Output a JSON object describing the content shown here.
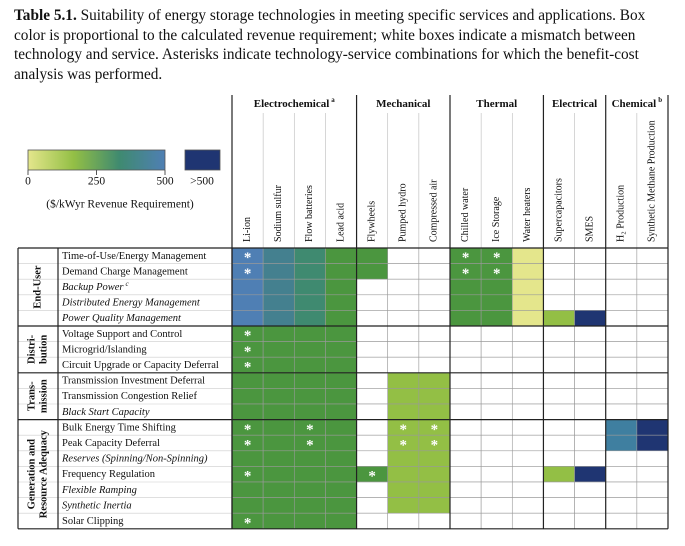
{
  "caption": {
    "label": "Table 5.1.",
    "text": "Suitability of energy storage technologies in meeting specific services and applications. Box color is proportional to the calculated revenue requirement; white boxes indicate a mismatch between technology and service. Asterisks indicate technology-service combinations for which the benefit-cost analysis was performed."
  },
  "legend": {
    "ticks": [
      0,
      250,
      500
    ],
    "over_label": ">500",
    "unit": "($/kWyr Revenue Requirement)",
    "gradient": [
      "#e4e68c",
      "#93bf45",
      "#3f8a70",
      "#4f7fb4"
    ],
    "over_color": "#1f3572"
  },
  "groups": [
    {
      "label": "Electrochemical",
      "note": "a",
      "columns": [
        "Li-ion",
        "Sodium sulfur",
        "Flow batteries",
        "Lead acid"
      ]
    },
    {
      "label": "Mechanical",
      "columns": [
        "Flywheels",
        "Pumped hydro",
        "Compressed air"
      ]
    },
    {
      "label": "Thermal",
      "columns": [
        "Chilled water",
        "Ice Storage",
        "Water heaters"
      ]
    },
    {
      "label": "Electrical",
      "columns": [
        "Supercapacitors",
        "SMES"
      ]
    },
    {
      "label": "Chemical",
      "note": "b",
      "columns": [
        "H₂ Production",
        "Synthetic Methane Production"
      ]
    }
  ],
  "sections": [
    {
      "label": [
        "End-User"
      ],
      "rows": [
        {
          "label": "Time-of-Use/Energy Management",
          "cells": [
            {
              "color": "#4f7fb4",
              "mark": "*"
            },
            {
              "color": "#44808f"
            },
            {
              "color": "#3f8a70"
            },
            {
              "color": "#4b963f"
            },
            {
              "color": "#4b963f"
            },
            null,
            null,
            {
              "color": "#4b963f",
              "mark": "*"
            },
            {
              "color": "#4b963f",
              "mark": "*"
            },
            {
              "color": "#e4e68c"
            },
            null,
            null,
            null,
            null
          ]
        },
        {
          "label": "Demand Charge Management",
          "cells": [
            {
              "color": "#4f7fb4",
              "mark": "*"
            },
            {
              "color": "#44808f"
            },
            {
              "color": "#3f8a70"
            },
            {
              "color": "#4b963f"
            },
            {
              "color": "#4b963f"
            },
            null,
            null,
            {
              "color": "#4b963f",
              "mark": "*"
            },
            {
              "color": "#4b963f",
              "mark": "*"
            },
            {
              "color": "#e4e68c"
            },
            null,
            null,
            null,
            null
          ]
        },
        {
          "label": "Backup Power",
          "note": "c",
          "italic": true,
          "cells": [
            {
              "color": "#4f7fb4"
            },
            {
              "color": "#44808f"
            },
            {
              "color": "#3f8a70"
            },
            {
              "color": "#4b963f"
            },
            null,
            null,
            null,
            {
              "color": "#4b963f"
            },
            {
              "color": "#4b963f"
            },
            {
              "color": "#e4e68c"
            },
            null,
            null,
            null,
            null
          ]
        },
        {
          "label": "Distributed Energy Management",
          "italic": true,
          "cells": [
            {
              "color": "#4f7fb4"
            },
            {
              "color": "#44808f"
            },
            {
              "color": "#3f8a70"
            },
            {
              "color": "#4b963f"
            },
            null,
            null,
            null,
            {
              "color": "#4b963f"
            },
            {
              "color": "#4b963f"
            },
            {
              "color": "#e4e68c"
            },
            null,
            null,
            null,
            null
          ]
        },
        {
          "label": "Power Quality Management",
          "italic": true,
          "cells": [
            {
              "color": "#4f7fb4"
            },
            {
              "color": "#44808f"
            },
            {
              "color": "#3f8a70"
            },
            {
              "color": "#4b963f"
            },
            null,
            null,
            null,
            {
              "color": "#4b963f"
            },
            {
              "color": "#4b963f"
            },
            {
              "color": "#e4e68c"
            },
            {
              "color": "#93bf45"
            },
            {
              "color": "#1f3572"
            },
            null,
            null
          ]
        }
      ]
    },
    {
      "label": [
        "Distri-",
        "bution"
      ],
      "rows": [
        {
          "label": "Voltage Support and Control",
          "cells": [
            {
              "color": "#4b963f",
              "mark": "*"
            },
            {
              "color": "#4b963f"
            },
            {
              "color": "#4b963f"
            },
            {
              "color": "#4b963f"
            },
            null,
            null,
            null,
            null,
            null,
            null,
            null,
            null,
            null,
            null
          ]
        },
        {
          "label": "Microgrid/Islanding",
          "cells": [
            {
              "color": "#4b963f",
              "mark": "*"
            },
            {
              "color": "#4b963f"
            },
            {
              "color": "#4b963f"
            },
            {
              "color": "#4b963f"
            },
            null,
            null,
            null,
            null,
            null,
            null,
            null,
            null,
            null,
            null
          ]
        },
        {
          "label": "Circuit Upgrade or Capacity Deferral",
          "cells": [
            {
              "color": "#4b963f",
              "mark": "*"
            },
            {
              "color": "#4b963f"
            },
            {
              "color": "#4b963f"
            },
            {
              "color": "#4b963f"
            },
            null,
            null,
            null,
            null,
            null,
            null,
            null,
            null,
            null,
            null
          ]
        }
      ]
    },
    {
      "label": [
        "Trans-",
        "mission"
      ],
      "rows": [
        {
          "label": "Transmission Investment Deferral",
          "cells": [
            {
              "color": "#4b963f"
            },
            {
              "color": "#4b963f"
            },
            {
              "color": "#4b963f"
            },
            {
              "color": "#4b963f"
            },
            null,
            {
              "color": "#93bf45"
            },
            {
              "color": "#93bf45"
            },
            null,
            null,
            null,
            null,
            null,
            null,
            null
          ]
        },
        {
          "label": "Transmission Congestion Relief",
          "cells": [
            {
              "color": "#4b963f"
            },
            {
              "color": "#4b963f"
            },
            {
              "color": "#4b963f"
            },
            {
              "color": "#4b963f"
            },
            null,
            {
              "color": "#93bf45"
            },
            {
              "color": "#93bf45"
            },
            null,
            null,
            null,
            null,
            null,
            null,
            null
          ]
        },
        {
          "label": "Black Start Capacity",
          "italic": true,
          "cells": [
            {
              "color": "#4b963f"
            },
            {
              "color": "#4b963f"
            },
            {
              "color": "#4b963f"
            },
            {
              "color": "#4b963f"
            },
            null,
            {
              "color": "#93bf45"
            },
            {
              "color": "#93bf45"
            },
            null,
            null,
            null,
            null,
            null,
            null,
            null
          ]
        }
      ]
    },
    {
      "label": [
        "Generation and",
        "Resource Adequacy"
      ],
      "rows": [
        {
          "label": "Bulk Energy Time Shifting",
          "cells": [
            {
              "color": "#4b963f",
              "mark": "*"
            },
            {
              "color": "#4b963f"
            },
            {
              "color": "#4b963f",
              "mark": "*"
            },
            {
              "color": "#4b963f"
            },
            null,
            {
              "color": "#93bf45",
              "mark": "*"
            },
            {
              "color": "#93bf45",
              "mark": "*"
            },
            null,
            null,
            null,
            null,
            null,
            {
              "color": "#3f7fa0"
            },
            {
              "color": "#1f3572"
            }
          ]
        },
        {
          "label": "Peak Capacity Deferral",
          "cells": [
            {
              "color": "#4b963f",
              "mark": "*"
            },
            {
              "color": "#4b963f"
            },
            {
              "color": "#4b963f",
              "mark": "*"
            },
            {
              "color": "#4b963f"
            },
            null,
            {
              "color": "#93bf45",
              "mark": "*"
            },
            {
              "color": "#93bf45",
              "mark": "*"
            },
            null,
            null,
            null,
            null,
            null,
            {
              "color": "#3f7fa0"
            },
            {
              "color": "#1f3572"
            }
          ]
        },
        {
          "label": "Reserves (Spinning/Non-Spinning)",
          "italic": true,
          "cells": [
            {
              "color": "#4b963f"
            },
            {
              "color": "#4b963f"
            },
            {
              "color": "#4b963f"
            },
            {
              "color": "#4b963f"
            },
            null,
            {
              "color": "#93bf45"
            },
            {
              "color": "#93bf45"
            },
            null,
            null,
            null,
            null,
            null,
            null,
            null
          ]
        },
        {
          "label": "Frequency Regulation",
          "cells": [
            {
              "color": "#4b963f",
              "mark": "*"
            },
            {
              "color": "#4b963f"
            },
            {
              "color": "#4b963f"
            },
            {
              "color": "#4b963f"
            },
            {
              "color": "#4b963f",
              "mark": "*"
            },
            {
              "color": "#93bf45"
            },
            {
              "color": "#93bf45"
            },
            null,
            null,
            null,
            {
              "color": "#93bf45"
            },
            {
              "color": "#1f3572"
            },
            null,
            null
          ]
        },
        {
          "label": "Flexible Ramping",
          "italic": true,
          "cells": [
            {
              "color": "#4b963f"
            },
            {
              "color": "#4b963f"
            },
            {
              "color": "#4b963f"
            },
            {
              "color": "#4b963f"
            },
            null,
            {
              "color": "#93bf45"
            },
            {
              "color": "#93bf45"
            },
            null,
            null,
            null,
            null,
            null,
            null,
            null
          ]
        },
        {
          "label": "Synthetic Inertia",
          "italic": true,
          "cells": [
            {
              "color": "#4b963f"
            },
            {
              "color": "#4b963f"
            },
            {
              "color": "#4b963f"
            },
            {
              "color": "#4b963f"
            },
            null,
            {
              "color": "#93bf45"
            },
            {
              "color": "#93bf45"
            },
            null,
            null,
            null,
            null,
            null,
            null,
            null
          ]
        },
        {
          "label": "Solar Clipping",
          "cells": [
            {
              "color": "#4b963f",
              "mark": "*"
            },
            {
              "color": "#4b963f"
            },
            {
              "color": "#4b963f"
            },
            {
              "color": "#4b963f"
            },
            null,
            null,
            null,
            null,
            null,
            null,
            null,
            null,
            null,
            null
          ]
        }
      ]
    }
  ]
}
